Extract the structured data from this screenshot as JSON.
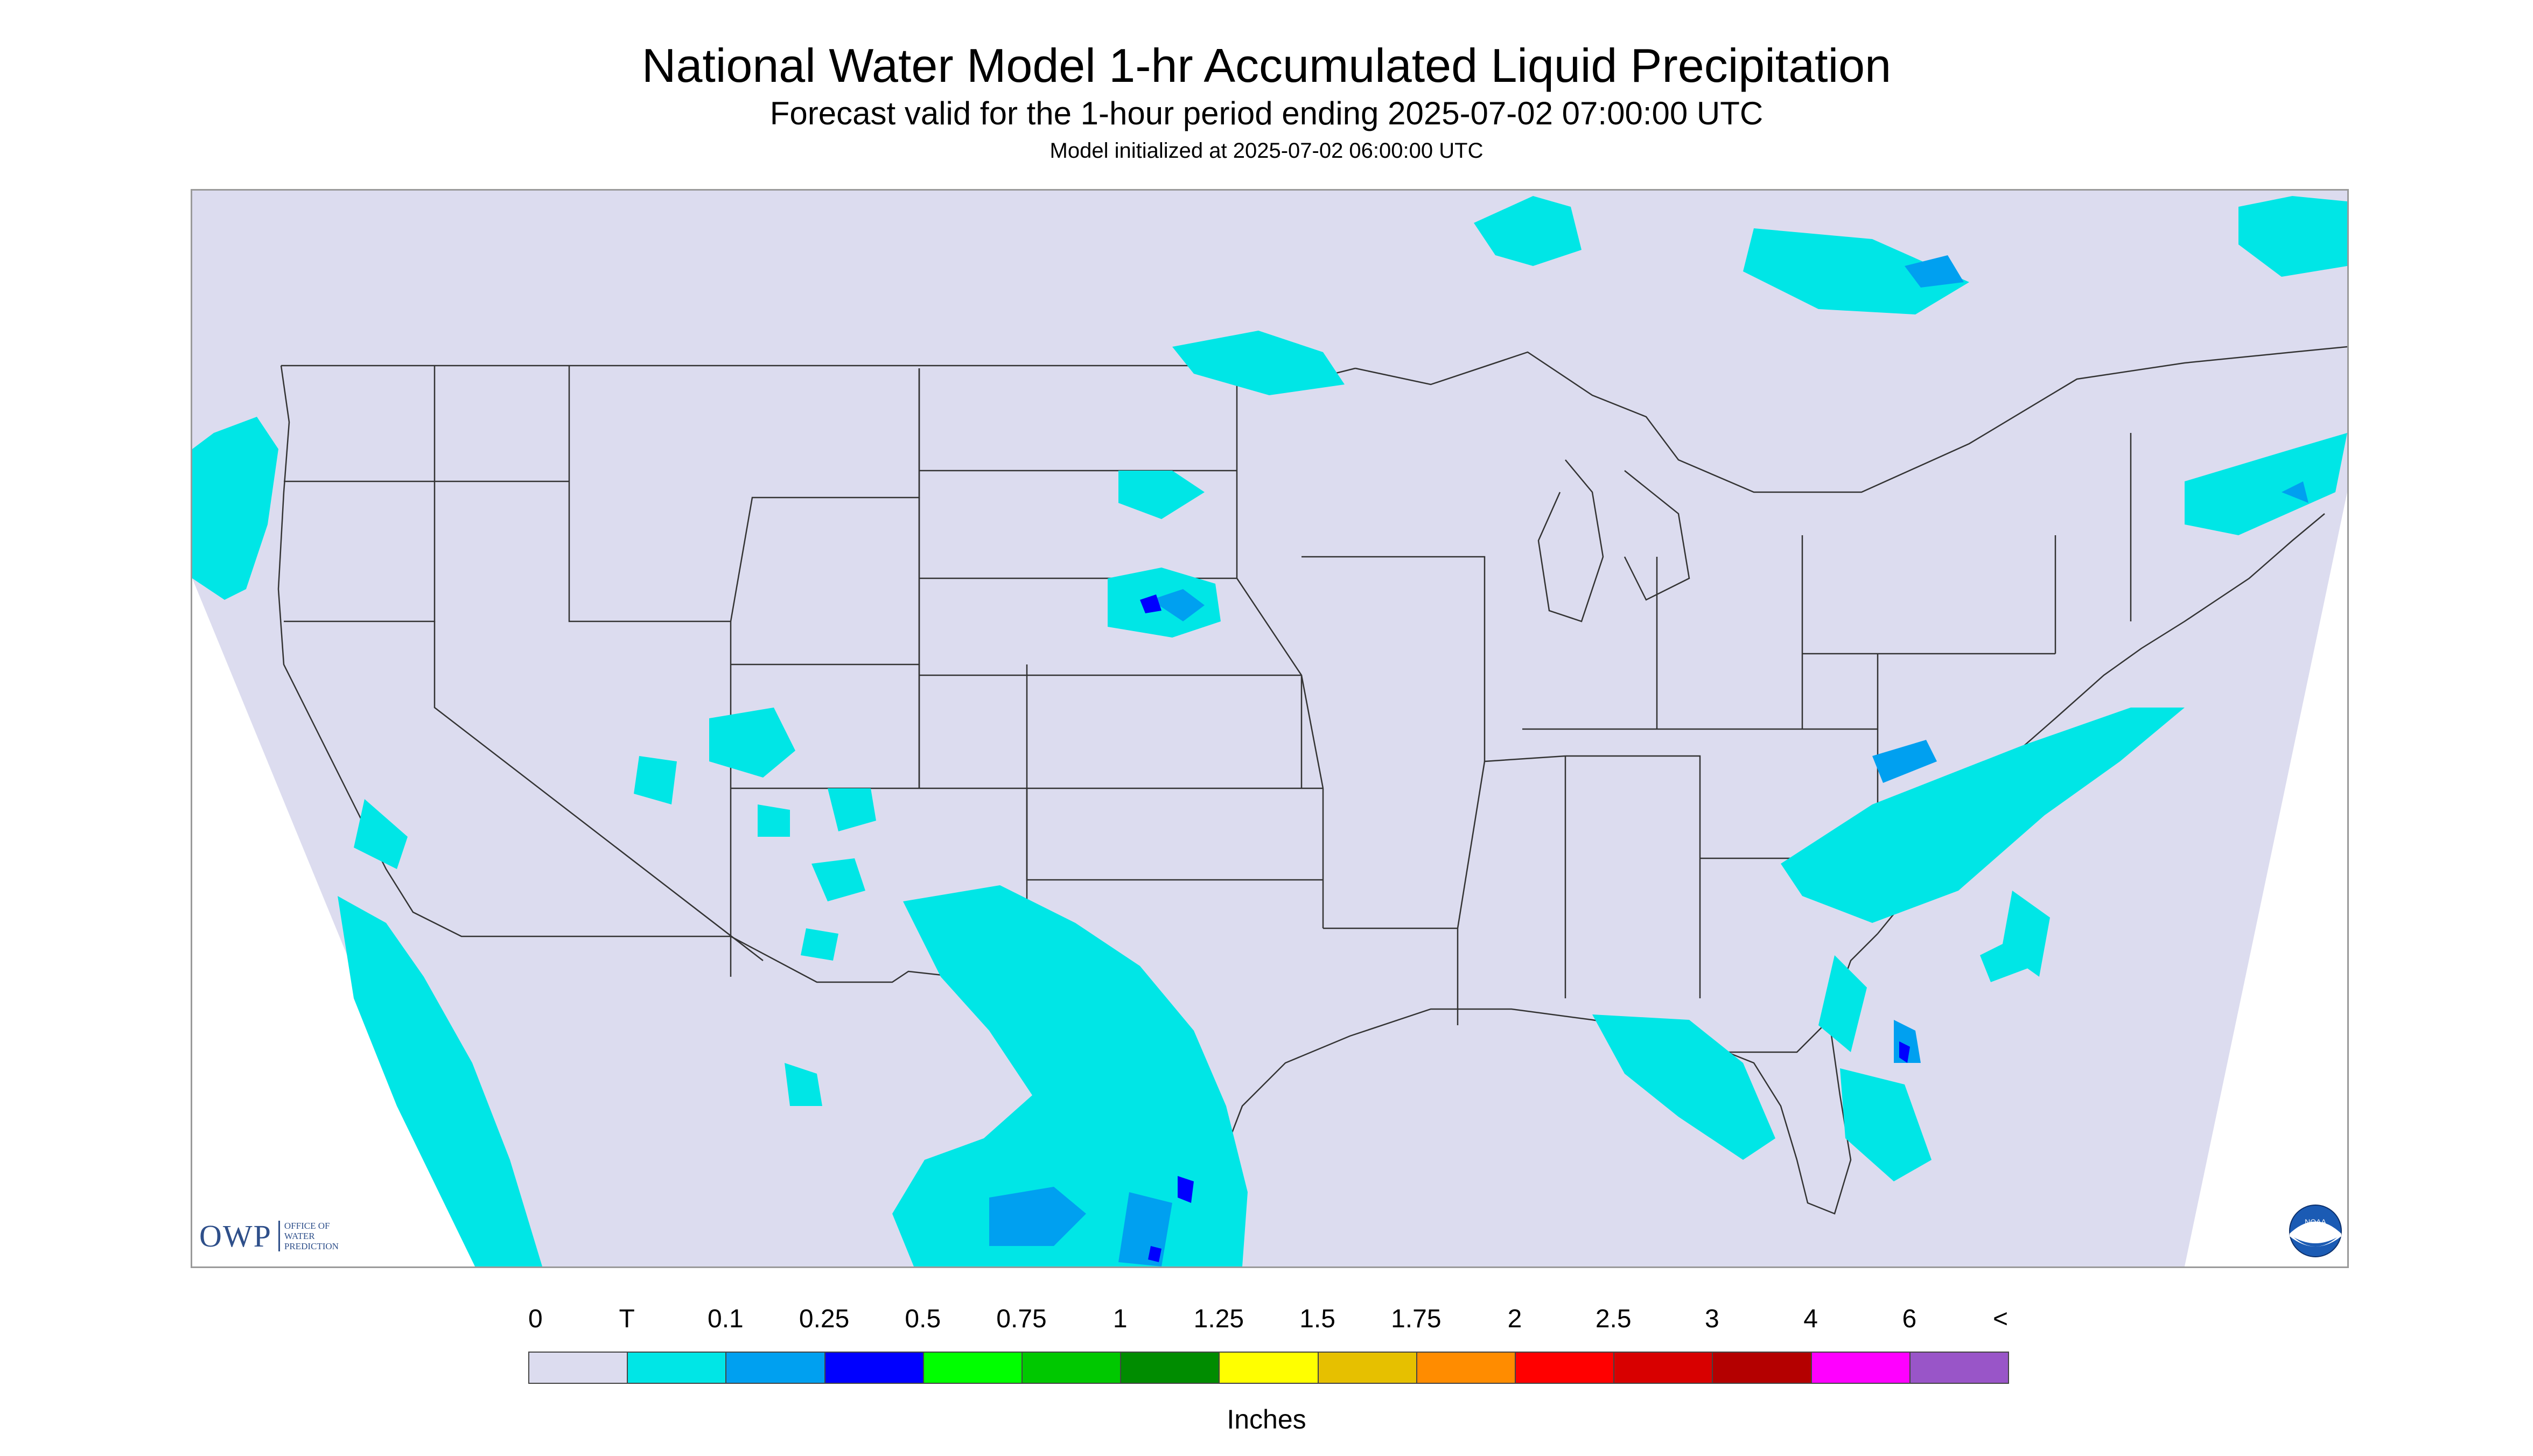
{
  "header": {
    "title": "National Water Model 1-hr Accumulated Liquid Precipitation",
    "subtitle": "Forecast valid for the 1-hour period ending 2025-07-02 07:00:00 UTC",
    "init": "Model initialized at 2025-07-02 06:00:00 UTC"
  },
  "logos": {
    "owp_mark": "OWP",
    "owp_lines": [
      "OFFICE OF",
      "WATER",
      "PREDICTION"
    ],
    "noaa_text": "NOAA"
  },
  "legend": {
    "labels": [
      "0",
      "T",
      "0.1",
      "0.25",
      "0.5",
      "0.75",
      "1",
      "1.25",
      "1.5",
      "1.75",
      "2",
      "2.5",
      "3",
      "4",
      "6",
      "<"
    ],
    "colors": [
      "#dcdcef",
      "#00e6e6",
      "#00a0f0",
      "#0000ff",
      "#00ff00",
      "#00c800",
      "#008c00",
      "#ffff00",
      "#e6c000",
      "#ff8c00",
      "#ff0000",
      "#d80000",
      "#b40000",
      "#ff00ff",
      "#9955c8"
    ],
    "units": "Inches"
  },
  "map": {
    "background_color": "#dcdcef",
    "outside_color": "#ffffff",
    "trace_color": "#00e6e6",
    "light_color": "#00a0f0",
    "heavy_color": "#0000ff",
    "line_color": "#333333"
  }
}
